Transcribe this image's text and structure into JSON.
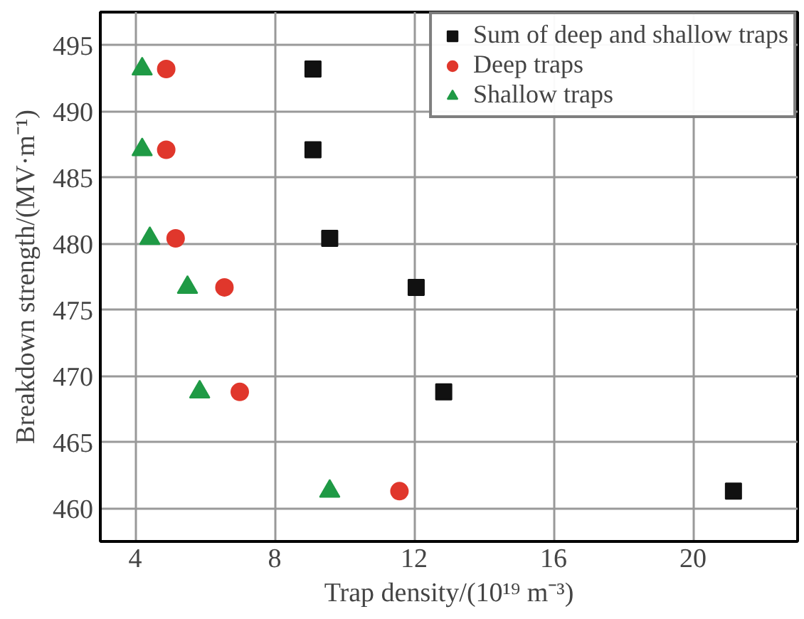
{
  "chart_data": {
    "type": "scatter",
    "xlabel": "Trap density/(10¹⁹ m⁻³)",
    "ylabel": "Breakdown strength/(MV·m⁻¹)",
    "xlim": [
      3,
      23
    ],
    "xticks": [
      4,
      8,
      12,
      16,
      20
    ],
    "ylim": [
      457.5,
      497.5
    ],
    "yticks": [
      460,
      465,
      470,
      475,
      480,
      485,
      490,
      495
    ],
    "grid": true,
    "legend": "top right",
    "series": [
      {
        "name": "Sum of deep and shallow traps",
        "color": "#111111",
        "marker": "square",
        "x": [
          9.1,
          9.1,
          9.58,
          12.06,
          12.85,
          21.16
        ],
        "values": [
          493.2,
          487.1,
          480.4,
          476.7,
          468.8,
          461.3
        ]
      },
      {
        "name": "Deep traps",
        "color": "#e0372c",
        "marker": "circle",
        "x": [
          4.89,
          4.89,
          5.16,
          6.56,
          7.0,
          11.58
        ],
        "values": [
          493.2,
          487.1,
          480.4,
          476.7,
          468.8,
          461.3
        ]
      },
      {
        "name": "Shallow traps",
        "color": "#1f9a45",
        "marker": "triangle",
        "x": [
          4.2,
          4.2,
          4.42,
          5.5,
          5.85,
          9.58
        ],
        "values": [
          493.2,
          487.1,
          480.4,
          476.7,
          468.8,
          461.3
        ]
      }
    ]
  }
}
